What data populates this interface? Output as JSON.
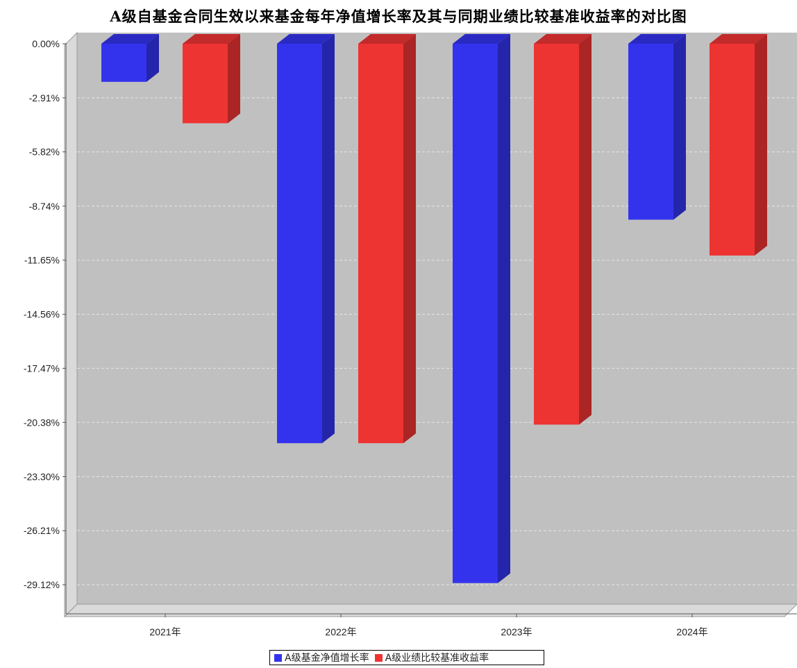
{
  "chart_data": {
    "type": "bar",
    "title": "A级自基金合同生效以来基金每年净值增长率及其与同期业绩比较基准收益率的对比图",
    "categories": [
      "2021年",
      "2022年",
      "2023年",
      "2024年"
    ],
    "series": [
      {
        "name": "A级基金净值增长率",
        "color": "#3333ee",
        "values": [
          -2.05,
          -21.5,
          -29.03,
          -9.47
        ]
      },
      {
        "name": "A级业绩比较基准收益率",
        "color": "#ee3333",
        "values": [
          -4.28,
          -21.5,
          -20.5,
          -11.4
        ]
      }
    ],
    "yticks": [
      "0.00%",
      "-2.91%",
      "-5.82%",
      "-8.74%",
      "-11.65%",
      "-14.56%",
      "-17.47%",
      "-20.38%",
      "-23.30%",
      "-26.21%",
      "-29.12%"
    ],
    "ytick_values": [
      0,
      -2.91,
      -5.82,
      -8.74,
      -11.65,
      -14.56,
      -17.47,
      -20.38,
      -23.3,
      -26.21,
      -29.12
    ],
    "ylim": [
      -30.2,
      0
    ],
    "grid": true,
    "legend_position": "bottom",
    "plot_background": "#c0c0c0",
    "bar_style": "3d"
  }
}
